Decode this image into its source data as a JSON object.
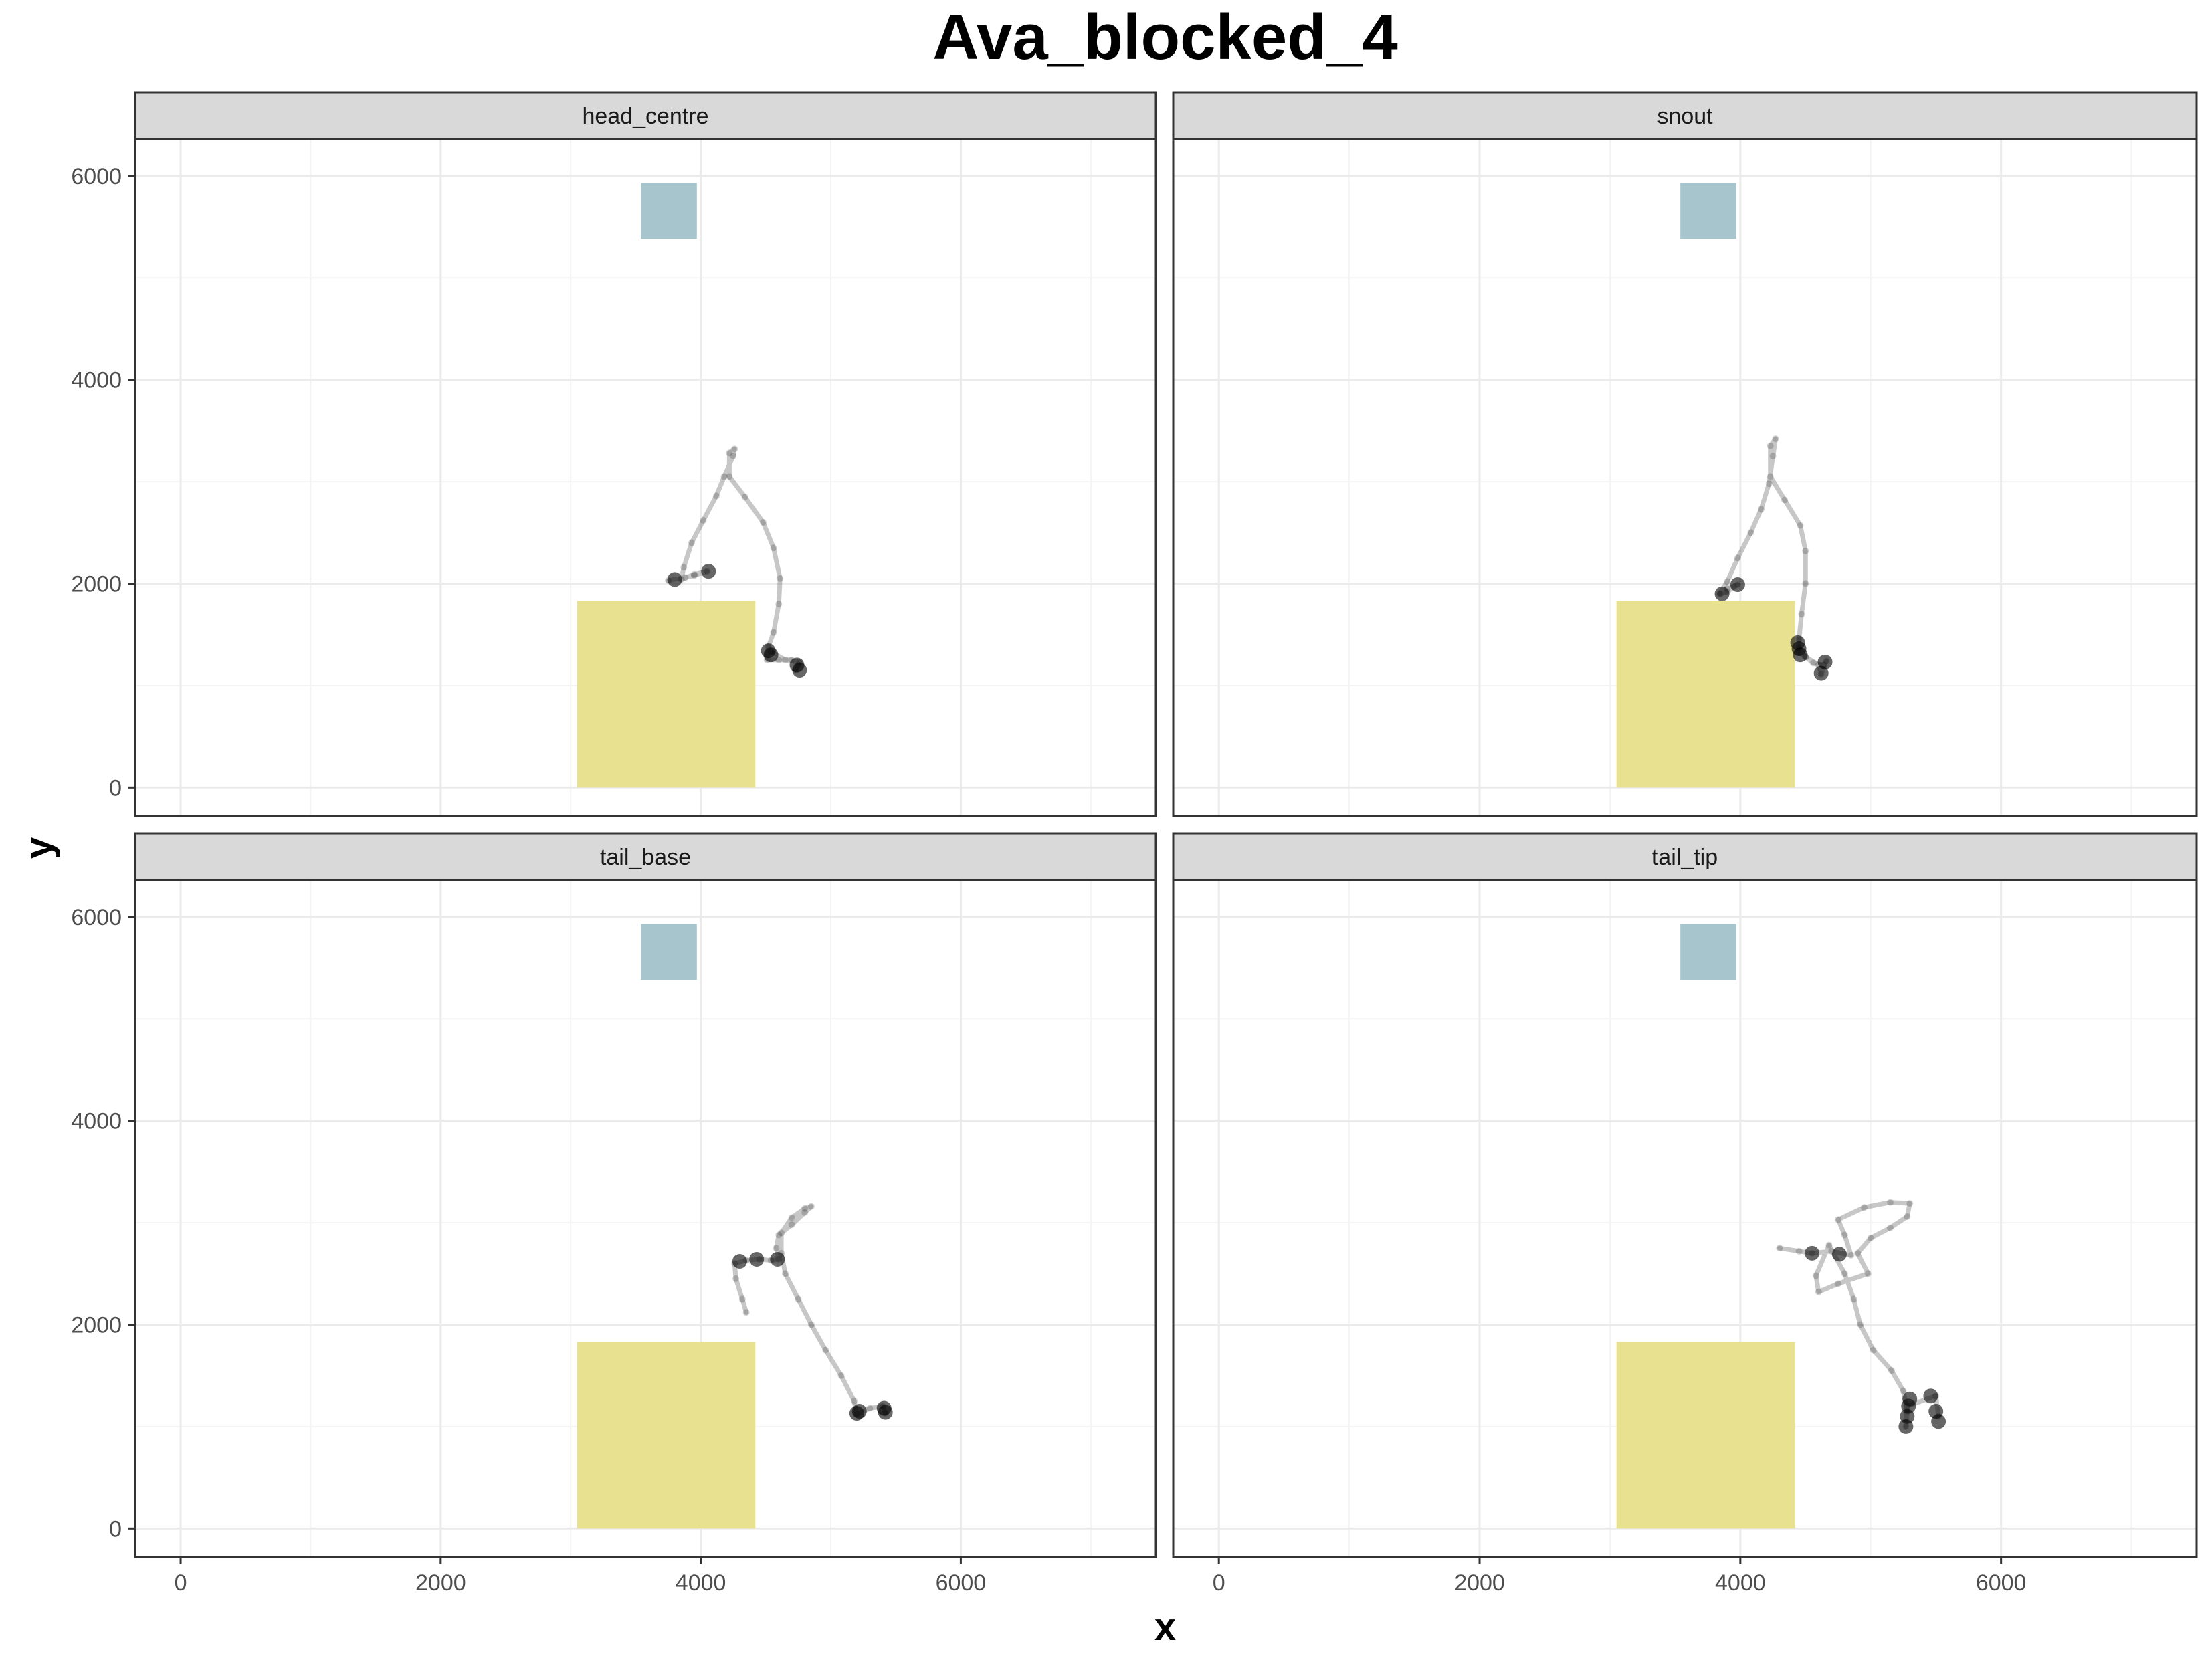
{
  "chart_data": {
    "type": "scatter",
    "title": "Ava_blocked_4",
    "xlabel": "x",
    "ylabel": "y",
    "facet_layout": "2x2",
    "xlim": [
      -350,
      7500
    ],
    "ylim": [
      -280,
      6360
    ],
    "x_ticks": [
      0,
      2000,
      4000,
      6000
    ],
    "y_ticks": [
      0,
      2000,
      4000,
      6000
    ],
    "x_tick_labels": [
      "0",
      "2000",
      "4000",
      "6000"
    ],
    "y_tick_labels": [
      "0",
      "2000",
      "4000",
      "6000"
    ],
    "grid": true,
    "legend": "none",
    "colors": {
      "strip_fill": "#d9d9d9",
      "platform_fill": "#e8e18f",
      "target_fill": "#a7c5cc",
      "track": "#000000",
      "grid_major": "#ebebeb",
      "grid_minor": "#f4f4f4"
    },
    "regions": {
      "platform": {
        "x": [
          3050,
          4420
        ],
        "y": [
          0,
          1830
        ]
      },
      "target": {
        "x": [
          3540,
          3970
        ],
        "y": [
          5380,
          5930
        ]
      }
    },
    "facets": [
      {
        "label": "head_centre",
        "path": [
          [
            3750,
            2030
          ],
          [
            3880,
            2060
          ],
          [
            3950,
            2080
          ],
          [
            4050,
            2120
          ],
          [
            3950,
            2090
          ],
          [
            3850,
            2040
          ],
          [
            3870,
            2160
          ],
          [
            3930,
            2400
          ],
          [
            4020,
            2620
          ],
          [
            4120,
            2860
          ],
          [
            4180,
            3050
          ],
          [
            4250,
            3250
          ],
          [
            4260,
            3320
          ],
          [
            4220,
            3280
          ],
          [
            4220,
            3050
          ],
          [
            4340,
            2850
          ],
          [
            4480,
            2600
          ],
          [
            4560,
            2350
          ],
          [
            4610,
            2050
          ],
          [
            4600,
            1800
          ],
          [
            4560,
            1520
          ],
          [
            4520,
            1380
          ],
          [
            4510,
            1250
          ],
          [
            4600,
            1250
          ],
          [
            4700,
            1250
          ],
          [
            4750,
            1200
          ],
          [
            4730,
            1150
          ],
          [
            4760,
            1230
          ],
          [
            4650,
            1250
          ],
          [
            4540,
            1330
          ]
        ],
        "clusters": [
          [
            4520,
            1340
          ],
          [
            4540,
            1300
          ],
          [
            4740,
            1200
          ],
          [
            4760,
            1150
          ],
          [
            3800,
            2040
          ],
          [
            4060,
            2120
          ]
        ]
      },
      {
        "label": "snout",
        "path": [
          [
            3850,
            1900
          ],
          [
            3900,
            1920
          ],
          [
            3950,
            1970
          ],
          [
            3980,
            1990
          ],
          [
            3900,
            1950
          ],
          [
            3840,
            1900
          ],
          [
            3900,
            2020
          ],
          [
            3980,
            2250
          ],
          [
            4080,
            2500
          ],
          [
            4160,
            2730
          ],
          [
            4220,
            2980
          ],
          [
            4250,
            3250
          ],
          [
            4270,
            3420
          ],
          [
            4230,
            3350
          ],
          [
            4230,
            3050
          ],
          [
            4340,
            2820
          ],
          [
            4460,
            2570
          ],
          [
            4500,
            2320
          ],
          [
            4500,
            2000
          ],
          [
            4470,
            1700
          ],
          [
            4450,
            1450
          ],
          [
            4440,
            1330
          ],
          [
            4500,
            1280
          ],
          [
            4560,
            1220
          ],
          [
            4640,
            1200
          ],
          [
            4660,
            1240
          ],
          [
            4620,
            1110
          ],
          [
            4600,
            1200
          ],
          [
            4500,
            1280
          ],
          [
            4450,
            1370
          ]
        ],
        "clusters": [
          [
            4440,
            1420
          ],
          [
            4450,
            1360
          ],
          [
            4460,
            1300
          ],
          [
            4650,
            1230
          ],
          [
            4620,
            1120
          ],
          [
            3860,
            1900
          ],
          [
            3980,
            1990
          ]
        ]
      },
      {
        "label": "tail_base",
        "path": [
          [
            4350,
            2120
          ],
          [
            4320,
            2250
          ],
          [
            4270,
            2450
          ],
          [
            4260,
            2600
          ],
          [
            4350,
            2630
          ],
          [
            4450,
            2640
          ],
          [
            4540,
            2630
          ],
          [
            4600,
            2640
          ],
          [
            4580,
            2750
          ],
          [
            4600,
            2880
          ],
          [
            4700,
            2980
          ],
          [
            4800,
            3100
          ],
          [
            4850,
            3160
          ],
          [
            4800,
            3140
          ],
          [
            4700,
            3050
          ],
          [
            4620,
            2900
          ],
          [
            4620,
            2700
          ],
          [
            4650,
            2500
          ],
          [
            4750,
            2250
          ],
          [
            4850,
            2000
          ],
          [
            4960,
            1750
          ],
          [
            5080,
            1500
          ],
          [
            5180,
            1250
          ],
          [
            5200,
            1120
          ],
          [
            5300,
            1180
          ],
          [
            5400,
            1200
          ],
          [
            5420,
            1130
          ]
        ],
        "clusters": [
          [
            5200,
            1130
          ],
          [
            5220,
            1150
          ],
          [
            5410,
            1180
          ],
          [
            5420,
            1140
          ],
          [
            4300,
            2620
          ],
          [
            4430,
            2640
          ],
          [
            4590,
            2640
          ]
        ]
      },
      {
        "label": "tail_tip",
        "path": [
          [
            4300,
            2750
          ],
          [
            4450,
            2720
          ],
          [
            4550,
            2700
          ],
          [
            4700,
            2720
          ],
          [
            4850,
            2680
          ],
          [
            4800,
            2880
          ],
          [
            4750,
            3030
          ],
          [
            4950,
            3150
          ],
          [
            5150,
            3200
          ],
          [
            5300,
            3190
          ],
          [
            5280,
            3060
          ],
          [
            5150,
            2950
          ],
          [
            5000,
            2850
          ],
          [
            4900,
            2700
          ],
          [
            4980,
            2500
          ],
          [
            4750,
            2400
          ],
          [
            4600,
            2320
          ],
          [
            4580,
            2480
          ],
          [
            4680,
            2780
          ],
          [
            4800,
            2500
          ],
          [
            4870,
            2250
          ],
          [
            4920,
            2000
          ],
          [
            5020,
            1750
          ],
          [
            5160,
            1550
          ],
          [
            5250,
            1350
          ],
          [
            5280,
            1150
          ],
          [
            5270,
            1000
          ],
          [
            5280,
            1200
          ],
          [
            5500,
            1300
          ],
          [
            5520,
            1100
          ]
        ],
        "clusters": [
          [
            5270,
            1000
          ],
          [
            5280,
            1100
          ],
          [
            5290,
            1200
          ],
          [
            5300,
            1270
          ],
          [
            5460,
            1300
          ],
          [
            5500,
            1150
          ],
          [
            5520,
            1050
          ],
          [
            4550,
            2700
          ],
          [
            4760,
            2690
          ]
        ]
      }
    ]
  }
}
